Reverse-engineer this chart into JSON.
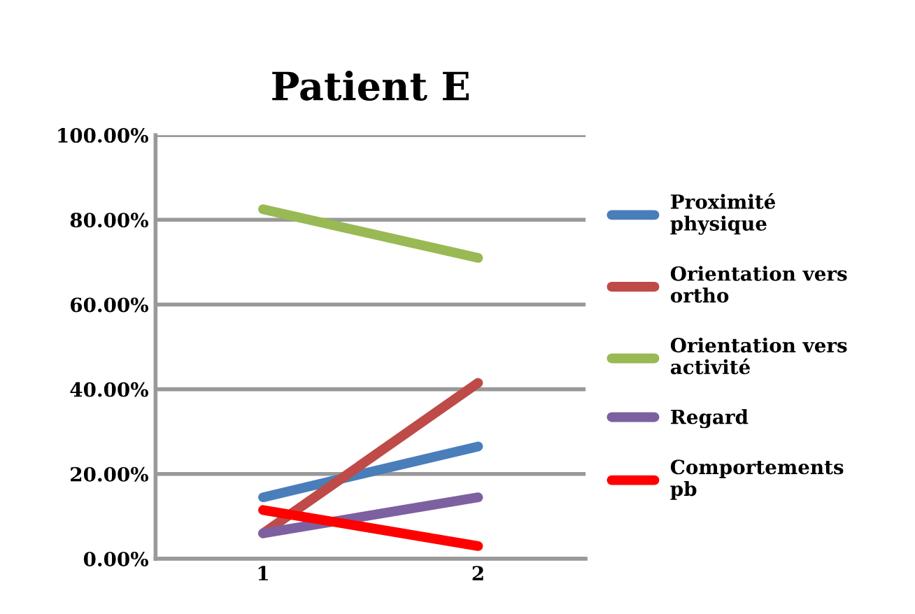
{
  "chart_data": {
    "type": "line",
    "title": "Patient E",
    "categories": [
      "1",
      "2"
    ],
    "series": [
      {
        "name": "Proximité physique",
        "color": "#4a7ebb",
        "values": [
          14.5,
          26.5
        ]
      },
      {
        "name": "Orientation vers ortho",
        "color": "#be4b48",
        "values": [
          6,
          41.5
        ]
      },
      {
        "name": "Orientation vers activité",
        "color": "#98b954",
        "values": [
          82.5,
          71
        ]
      },
      {
        "name": "Regard",
        "color": "#7d60a0",
        "values": [
          6,
          14.5
        ]
      },
      {
        "name": "Comportements pb",
        "color": "#ff0000",
        "values": [
          11.5,
          3
        ]
      }
    ],
    "ylim": [
      0,
      100
    ],
    "yticks": [
      {
        "value": 0,
        "label": "0.00%"
      },
      {
        "value": 20,
        "label": "20.00%"
      },
      {
        "value": 40,
        "label": "40.00%"
      },
      {
        "value": 60,
        "label": "60.00%"
      },
      {
        "value": 80,
        "label": "80.00%"
      },
      {
        "value": 100,
        "label": "100.00%"
      }
    ],
    "grid": "y",
    "legend": "right",
    "marker": "none",
    "line_style": "solid"
  }
}
